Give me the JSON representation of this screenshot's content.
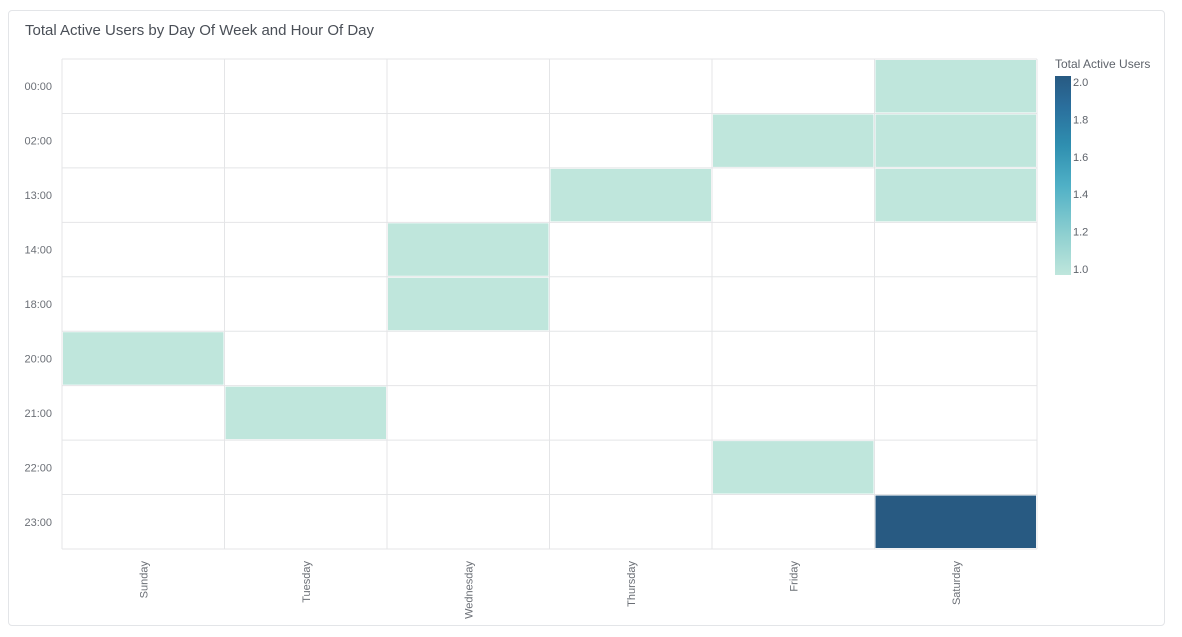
{
  "panel": {
    "title": "Total Active Users by Day Of Week and Hour Of Day"
  },
  "chart_data": {
    "type": "heatmap",
    "title": "Total Active Users by Day Of Week and Hour Of Day",
    "x_categories": [
      "Sunday",
      "Tuesday",
      "Wednesday",
      "Thursday",
      "Friday",
      "Saturday"
    ],
    "y_categories": [
      "00:00",
      "02:00",
      "13:00",
      "14:00",
      "18:00",
      "20:00",
      "21:00",
      "22:00",
      "23:00"
    ],
    "cells": [
      {
        "x": "Saturday",
        "y": "00:00",
        "value": 1
      },
      {
        "x": "Friday",
        "y": "02:00",
        "value": 1
      },
      {
        "x": "Saturday",
        "y": "02:00",
        "value": 1
      },
      {
        "x": "Thursday",
        "y": "13:00",
        "value": 1
      },
      {
        "x": "Saturday",
        "y": "13:00",
        "value": 1
      },
      {
        "x": "Wednesday",
        "y": "14:00",
        "value": 1
      },
      {
        "x": "Wednesday",
        "y": "18:00",
        "value": 1
      },
      {
        "x": "Sunday",
        "y": "20:00",
        "value": 1
      },
      {
        "x": "Tuesday",
        "y": "21:00",
        "value": 1
      },
      {
        "x": "Friday",
        "y": "22:00",
        "value": 1
      },
      {
        "x": "Saturday",
        "y": "23:00",
        "value": 2
      }
    ],
    "colorscale": {
      "title": "Total Active Users",
      "range": [
        1.0,
        2.0
      ],
      "ticks": [
        "1.0",
        "1.2",
        "1.4",
        "1.6",
        "1.8",
        "2.0"
      ],
      "colors": [
        "#bfe6dc",
        "#8fd0d0",
        "#4fb0c6",
        "#2f8fb0",
        "#2a6e9c",
        "#285a82"
      ]
    },
    "grid": true,
    "legend_position": "right"
  }
}
